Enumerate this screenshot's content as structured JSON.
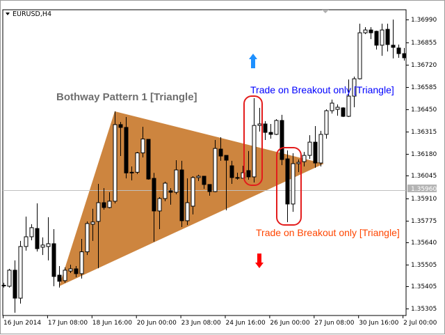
{
  "chart_title": "EURUSD,H4",
  "pattern_title": "Bothway Pattern 1  [Triangle]",
  "buy_label": "Trade on Breakout only [Triangle]",
  "sell_label": "Trade on Breakout only [Triangle]",
  "icons": {
    "buy": "arrow-up-icon",
    "sell": "arrow-down-icon",
    "menu": "chevron-down-icon"
  },
  "colors": {
    "triangle": "#cd853f",
    "buy": "#0000ff",
    "sell": "#ff4500",
    "buy_arrow": "#1e90ff",
    "sell_arrow": "#ff0000",
    "box": "#e31b1b",
    "bid_line": "#c0c0c0",
    "bull_body": "#ffffff",
    "bear_body": "#000000"
  },
  "chart_data": {
    "type": "candlestick",
    "symbol": "EURUSD",
    "timeframe": "H4",
    "current_price": "1.35960",
    "y_ticks": [
      "1.36990",
      "1.36855",
      "1.36720",
      "1.36585",
      "1.36450",
      "1.36315",
      "1.36180",
      "1.36045",
      "1.35910",
      "1.35775",
      "1.35640",
      "1.35505",
      "1.35405",
      "1.35305"
    ],
    "x_ticks": [
      "16 Jun 2014",
      "17 Jun 08:00",
      "18 Jun 16:00",
      "20 Jun 00:00",
      "23 Jun 08:00",
      "24 Jun 16:00",
      "26 Jun 00:00",
      "27 Jun 08:00",
      "30 Jun 16:00",
      "2 Jul 00:00"
    ],
    "ohlc": [
      [
        1.35384,
        1.35399,
        1.3537,
        1.3538
      ],
      [
        1.35378,
        1.35483,
        1.3537,
        1.35475
      ],
      [
        1.35475,
        1.35534,
        1.35218,
        1.35306
      ],
      [
        1.35306,
        1.35652,
        1.35273,
        1.35618
      ],
      [
        1.35618,
        1.35799,
        1.35593,
        1.35677
      ],
      [
        1.35677,
        1.35753,
        1.35656,
        1.35732
      ],
      [
        1.35727,
        1.35879,
        1.35588,
        1.35605
      ],
      [
        1.35614,
        1.35673,
        1.35567,
        1.35627
      ],
      [
        1.35618,
        1.35795,
        1.35534,
        1.35635
      ],
      [
        1.35635,
        1.35723,
        1.35378,
        1.35437
      ],
      [
        1.35445,
        1.355,
        1.3537,
        1.35408
      ],
      [
        1.35412,
        1.35492,
        1.35399,
        1.35475
      ],
      [
        1.3547,
        1.35508,
        1.35458,
        1.35483
      ],
      [
        1.35483,
        1.355,
        1.35433,
        1.35454
      ],
      [
        1.35454,
        1.35664,
        1.35424,
        1.35586
      ],
      [
        1.35586,
        1.3577,
        1.35567,
        1.35757
      ],
      [
        1.35753,
        1.35846,
        1.35652,
        1.35766
      ],
      [
        1.3577,
        1.35997,
        1.35487,
        1.35883
      ],
      [
        1.35883,
        1.35971,
        1.35841,
        1.35854
      ],
      [
        1.35854,
        1.35946,
        1.35849,
        1.35892
      ],
      [
        1.35892,
        1.36435,
        1.35879,
        1.36355
      ],
      [
        1.36355,
        1.36371,
        1.36165,
        1.36338
      ],
      [
        1.36338,
        1.36401,
        1.3603,
        1.36063
      ],
      [
        1.36067,
        1.36102,
        1.36018,
        1.36063
      ],
      [
        1.36067,
        1.3619,
        1.36056,
        1.36184
      ],
      [
        1.36184,
        1.36342,
        1.36157,
        1.36268
      ],
      [
        1.36266,
        1.36266,
        1.36022,
        1.36026
      ],
      [
        1.3603,
        1.36063,
        1.35647,
        1.35833
      ],
      [
        1.35833,
        1.35917,
        1.35723,
        1.35908
      ],
      [
        1.35908,
        1.3601,
        1.35892,
        1.36001
      ],
      [
        1.35955,
        1.35971,
        1.35871,
        1.35946
      ],
      [
        1.35946,
        1.3614,
        1.35934,
        1.36081
      ],
      [
        1.36081,
        1.36136,
        1.35736,
        1.35774
      ],
      [
        1.35774,
        1.3603,
        1.35748,
        1.35883
      ],
      [
        1.35862,
        1.36043,
        1.35812,
        1.36035
      ],
      [
        1.36035,
        1.36052,
        1.36014,
        1.36043
      ],
      [
        1.36043,
        1.36043,
        1.35967,
        1.35993
      ],
      [
        1.35993,
        1.35993,
        1.35925,
        1.3595
      ],
      [
        1.3595,
        1.36262,
        1.35946,
        1.36211
      ],
      [
        1.36207,
        1.36279,
        1.36136,
        1.36165
      ],
      [
        1.36169,
        1.36169,
        1.35837,
        1.3614
      ],
      [
        1.36106,
        1.36136,
        1.35997,
        1.36035
      ],
      [
        1.36035,
        1.36064,
        1.36022,
        1.36031
      ],
      [
        1.36031,
        1.36106,
        1.36031,
        1.36064
      ],
      [
        1.36077,
        1.36195,
        1.36022,
        1.36039
      ],
      [
        1.36039,
        1.36515,
        1.36005,
        1.3635
      ],
      [
        1.3635,
        1.36456,
        1.36313,
        1.36359
      ],
      [
        1.36359,
        1.36376,
        1.36262,
        1.36308
      ],
      [
        1.36308,
        1.36359,
        1.3627,
        1.36296
      ],
      [
        1.36296,
        1.36388,
        1.36292,
        1.3638
      ],
      [
        1.3638,
        1.36414,
        1.3611,
        1.36144
      ],
      [
        1.36148,
        1.36199,
        1.35765,
        1.35875
      ],
      [
        1.35875,
        1.36182,
        1.35828,
        1.36119
      ],
      [
        1.36119,
        1.36144,
        1.36068,
        1.36127
      ],
      [
        1.36131,
        1.3619,
        1.36102,
        1.36169
      ],
      [
        1.36169,
        1.36291,
        1.36148,
        1.36249
      ],
      [
        1.36249,
        1.36346,
        1.36094,
        1.36123
      ],
      [
        1.36123,
        1.36317,
        1.36102,
        1.36296
      ],
      [
        1.36296,
        1.36447,
        1.3627,
        1.36439
      ],
      [
        1.36439,
        1.36506,
        1.36422,
        1.36485
      ],
      [
        1.36447,
        1.36477,
        1.36409,
        1.3646
      ],
      [
        1.36456,
        1.3646,
        1.36401,
        1.36405
      ],
      [
        1.36405,
        1.36628,
        1.36401,
        1.36527
      ],
      [
        1.36527,
        1.36645,
        1.3646,
        1.36632
      ],
      [
        1.36632,
        1.36965,
        1.36628,
        1.3691
      ],
      [
        1.3691,
        1.36944,
        1.36902,
        1.36927
      ],
      [
        1.36927,
        1.36944,
        1.36872,
        1.3691
      ],
      [
        1.36919,
        1.36923,
        1.36809,
        1.36835
      ],
      [
        1.36835,
        1.36965,
        1.36771,
        1.36927
      ],
      [
        1.36931,
        1.36965,
        1.36797,
        1.36839
      ],
      [
        1.36835,
        1.3699,
        1.36755,
        1.36822
      ],
      [
        1.36818,
        1.36839,
        1.36759,
        1.36784
      ],
      [
        1.36784,
        1.36818,
        1.36742,
        1.36759
      ]
    ],
    "triangle": [
      {
        "bar": 10,
        "price": 1.35378
      },
      {
        "bar": 20,
        "price": 1.36435
      },
      {
        "bar": 57.6,
        "price": 1.36119
      }
    ]
  }
}
